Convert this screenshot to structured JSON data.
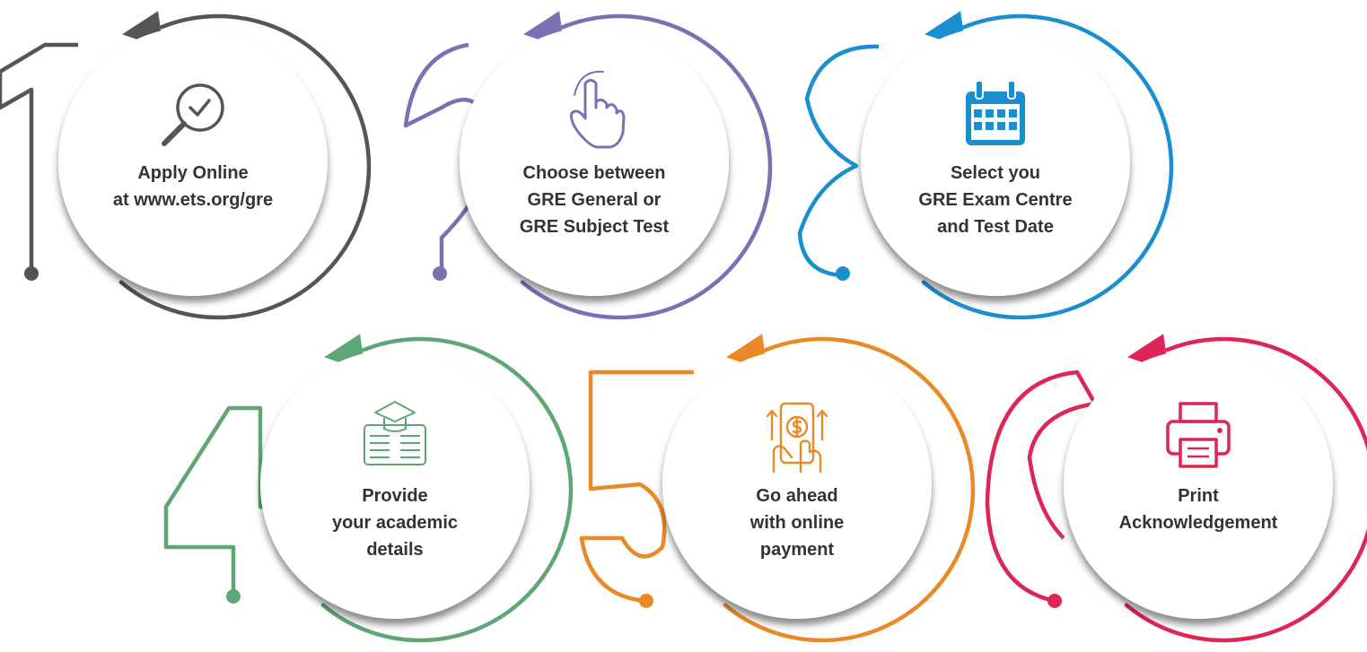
{
  "steps": [
    {
      "number": "1",
      "icon": "search-check-icon",
      "color": "#555555",
      "lines": [
        "Apply Online",
        "at www.ets.org/gre"
      ]
    },
    {
      "number": "2",
      "icon": "pointer-hand-icon",
      "color": "#7d6fb3",
      "lines": [
        "Choose between",
        "GRE General or",
        "GRE Subject Test"
      ]
    },
    {
      "number": "3",
      "icon": "calendar-icon",
      "color": "#1a8fd0",
      "lines": [
        "Select you",
        "GRE Exam Centre",
        "and Test Date"
      ]
    },
    {
      "number": "4",
      "icon": "graduation-details-icon",
      "color": "#5fa675",
      "lines": [
        "Provide",
        "your academic",
        "details"
      ]
    },
    {
      "number": "5",
      "icon": "mobile-payment-icon",
      "color": "#ea8a26",
      "lines": [
        "Go ahead",
        "with online",
        "payment"
      ]
    },
    {
      "number": "6",
      "icon": "printer-icon",
      "color": "#dd2656",
      "lines": [
        "Print",
        "Acknowledgement"
      ]
    }
  ]
}
